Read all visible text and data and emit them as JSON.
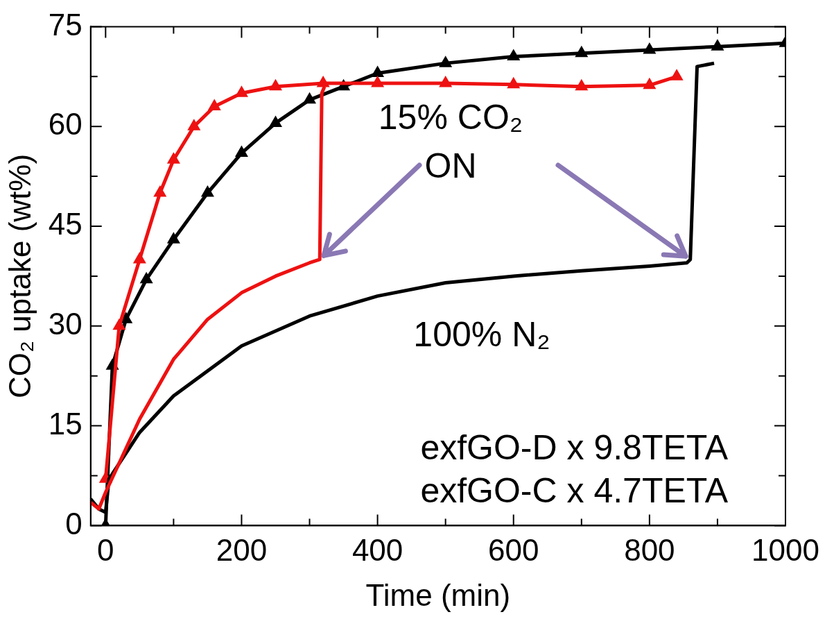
{
  "chart_data": {
    "type": "line",
    "xlabel": "Time (min)",
    "ylabel": "CO₂ uptake (wt%)",
    "xlim": [
      -22,
      1000
    ],
    "ylim": [
      0,
      75
    ],
    "xticks": [
      0,
      {
        "value": 100,
        "label": null
      },
      200,
      {
        "value": 300,
        "label": null
      },
      400,
      {
        "value": 500,
        "label": null
      },
      600,
      {
        "value": 700,
        "label": null
      },
      800,
      {
        "value": 900,
        "label": null
      },
      1000
    ],
    "yticks": [
      0,
      {
        "value": 7.5,
        "label": null
      },
      15,
      {
        "value": 22.5,
        "label": null
      },
      30,
      {
        "value": 37.5,
        "label": null
      },
      45,
      {
        "value": 52.5,
        "label": null
      },
      60,
      {
        "value": 67.5,
        "label": null
      },
      75
    ],
    "grid": false,
    "legend": false,
    "series": [
      {
        "color": "#ee1111",
        "marker": "none",
        "x": [
          -22,
          -10,
          0,
          50,
          100,
          150,
          200,
          250,
          300,
          315,
          318,
          322
        ],
        "values": [
          3.5,
          2.5,
          5,
          16,
          25,
          31,
          35,
          37.5,
          39.5,
          40,
          65,
          66
        ]
      },
      {
        "color": "#000000",
        "marker": "none",
        "x": [
          -22,
          -10,
          0,
          5,
          50,
          100,
          200,
          300,
          400,
          500,
          600,
          700,
          800,
          855,
          860,
          870,
          895
        ],
        "values": [
          4,
          2.5,
          2,
          7,
          14,
          19.5,
          27,
          31.5,
          34.5,
          36.5,
          37.5,
          38.3,
          39,
          39.5,
          40,
          69,
          69.5
        ]
      },
      {
        "color": "#ee1111",
        "marker": "triangle",
        "x": [
          0,
          20,
          50,
          80,
          100,
          130,
          160,
          200,
          250,
          320,
          400,
          500,
          600,
          700,
          800,
          840
        ],
        "values": [
          7,
          30,
          40,
          50,
          55,
          60,
          63,
          65,
          66,
          66.5,
          66.5,
          66.5,
          66.3,
          66,
          66.2,
          67.5
        ]
      },
      {
        "color": "#000000",
        "marker": "triangle",
        "x": [
          0,
          10,
          30,
          60,
          100,
          150,
          200,
          250,
          300,
          350,
          400,
          500,
          600,
          700,
          800,
          900,
          1000
        ],
        "values": [
          0,
          24,
          31,
          37,
          43,
          50,
          56,
          60.5,
          64,
          66,
          68,
          69.5,
          70.5,
          71,
          71.5,
          72,
          72.5
        ]
      }
    ],
    "annotations": [
      "15% CO₂\nON",
      "100% N₂",
      "exfGO-D x 9.8TETA",
      "exfGO-C x 4.7TETA"
    ]
  }
}
